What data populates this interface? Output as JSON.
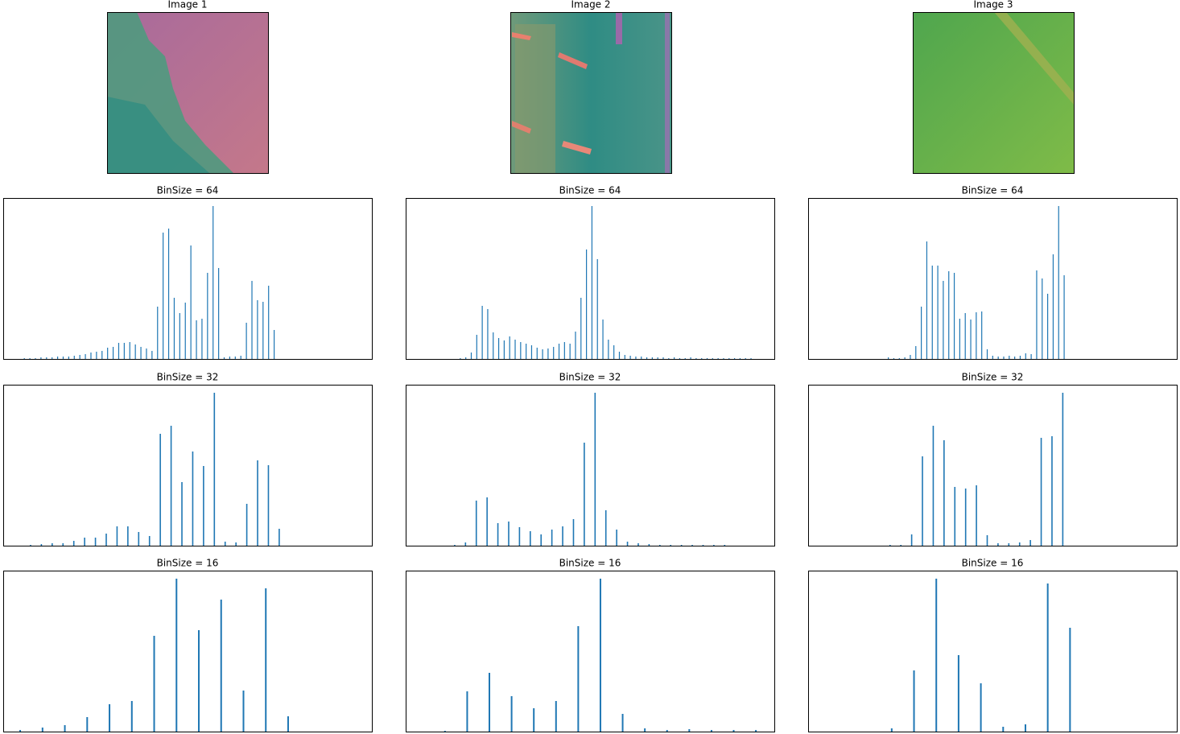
{
  "chart_data": [
    {
      "type": "image",
      "title": "Image 1"
    },
    {
      "type": "image",
      "title": "Image 2"
    },
    {
      "type": "image",
      "title": "Image 3"
    },
    {
      "type": "bar",
      "title": "BinSize = 64",
      "color": "#1f77b4",
      "ylim": [
        0,
        200
      ],
      "xlim": [
        -3.8,
        62.6
      ],
      "x": [
        0,
        1,
        2,
        3,
        4,
        5,
        6,
        7,
        8,
        9,
        10,
        11,
        12,
        13,
        14,
        15,
        16,
        17,
        18,
        19,
        20,
        21,
        22,
        23,
        24,
        25,
        26,
        27,
        28,
        29,
        30,
        31,
        32,
        33,
        34,
        35,
        36,
        37,
        38,
        39,
        40,
        41,
        42,
        43,
        44,
        45
      ],
      "values": [
        1,
        1,
        1,
        2,
        2,
        2,
        3,
        3,
        3,
        4,
        5,
        6,
        8,
        9,
        10,
        14,
        15,
        20,
        20,
        21,
        18,
        15,
        13,
        10,
        65,
        157,
        162,
        76,
        57,
        70,
        141,
        48,
        50,
        107,
        190,
        113,
        2,
        3,
        3,
        4,
        45,
        97,
        73,
        71,
        91,
        36
      ]
    },
    {
      "type": "bar",
      "title": "BinSize = 64",
      "color": "#1f77b4",
      "ylim": [
        0,
        200
      ],
      "xlim": [
        -9.96,
        57.25
      ],
      "x": [
        0,
        1,
        2,
        3,
        4,
        5,
        6,
        7,
        8,
        9,
        10,
        11,
        12,
        13,
        14,
        15,
        16,
        17,
        18,
        19,
        20,
        21,
        22,
        23,
        24,
        25,
        26,
        27,
        28,
        29,
        30,
        31,
        32,
        33,
        34,
        35,
        36,
        37,
        38,
        39,
        40,
        41,
        42,
        43,
        44,
        45,
        46,
        47,
        48,
        49,
        50,
        51,
        52,
        53
      ],
      "values": [
        1,
        2,
        8,
        30,
        66,
        62,
        33,
        26,
        23,
        28,
        24,
        21,
        19,
        17,
        14,
        12,
        13,
        15,
        19,
        21,
        19,
        34,
        76,
        136,
        190,
        124,
        49,
        24,
        17,
        9,
        5,
        4,
        3,
        3,
        2,
        2,
        2,
        2,
        1,
        2,
        1,
        1,
        2,
        1,
        1,
        1,
        1,
        1,
        1,
        1,
        1,
        1,
        1,
        1
      ]
    },
    {
      "type": "bar",
      "title": "BinSize = 64",
      "color": "#1f77b4",
      "ylim": [
        0,
        200
      ],
      "xlim": [
        -14.6,
        52.5
      ],
      "x": [
        0,
        1,
        2,
        3,
        4,
        5,
        6,
        7,
        8,
        9,
        10,
        11,
        12,
        13,
        14,
        15,
        16,
        17,
        18,
        19,
        20,
        21,
        22,
        23,
        24,
        25,
        26,
        27,
        28,
        29,
        30,
        31,
        32
      ],
      "values": [
        2,
        1,
        1,
        2,
        5,
        16,
        65,
        146,
        116,
        116,
        97,
        109,
        107,
        50,
        57,
        49,
        58,
        59,
        12,
        4,
        3,
        3,
        4,
        3,
        4,
        7,
        6,
        110,
        100,
        81,
        130,
        190,
        104
      ]
    },
    {
      "type": "bar",
      "title": "BinSize = 32",
      "color": "#1f77b4",
      "ylim": [
        0,
        200
      ],
      "xlim": [
        -2.53,
        31.57
      ],
      "x": [
        0,
        1,
        2,
        3,
        4,
        5,
        6,
        7,
        8,
        9,
        10,
        11,
        12,
        13,
        14,
        15,
        16,
        17,
        18,
        19,
        20,
        21,
        22,
        23
      ],
      "values": [
        1,
        2,
        3,
        3,
        6,
        10,
        10,
        15,
        24,
        24,
        17,
        12,
        139,
        149,
        79,
        117,
        99,
        190,
        5,
        4,
        52,
        106,
        100,
        21
      ]
    },
    {
      "type": "bar",
      "title": "BinSize = 32",
      "color": "#1f77b4",
      "ylim": [
        0,
        200
      ],
      "xlim": [
        -4.54,
        29.6
      ],
      "x": [
        0,
        1,
        2,
        3,
        4,
        5,
        6,
        7,
        8,
        9,
        10,
        11,
        12,
        13,
        14,
        15,
        16,
        17,
        18,
        19,
        20,
        21,
        22,
        23,
        24,
        25
      ],
      "values": [
        1,
        4,
        56,
        60,
        28,
        30,
        23,
        18,
        14,
        20,
        24,
        33,
        128,
        190,
        44,
        20,
        5,
        3,
        2,
        1,
        1,
        1,
        1,
        1,
        1,
        1
      ]
    },
    {
      "type": "bar",
      "title": "BinSize = 32",
      "color": "#1f77b4",
      "ylim": [
        0,
        200
      ],
      "xlim": [
        -7.59,
        26.56
      ],
      "x": [
        0,
        1,
        2,
        3,
        4,
        5,
        6,
        7,
        8,
        9,
        10,
        11,
        12,
        13,
        14,
        15,
        16
      ],
      "values": [
        1,
        1,
        14,
        111,
        149,
        131,
        73,
        71,
        75,
        13,
        3,
        3,
        4,
        7,
        134,
        136,
        190
      ]
    },
    {
      "type": "bar",
      "title": "BinSize = 16",
      "color": "#1f77b4",
      "ylim": [
        0,
        200
      ],
      "xlim": [
        -0.76,
        15.75
      ],
      "x": [
        0,
        1,
        2,
        3,
        4,
        5,
        6,
        7,
        8,
        9,
        10,
        11,
        12
      ],
      "values": [
        2,
        5,
        8,
        18,
        34,
        38,
        119,
        190,
        126,
        164,
        51,
        178,
        19
      ]
    },
    {
      "type": "bar",
      "title": "BinSize = 16",
      "color": "#1f77b4",
      "ylim": [
        0,
        200
      ],
      "xlim": [
        -1.77,
        14.83
      ],
      "x": [
        0,
        1,
        2,
        3,
        4,
        5,
        6,
        7,
        8,
        9,
        10,
        11,
        12,
        13,
        14
      ],
      "values": [
        1,
        50,
        73,
        44,
        29,
        38,
        131,
        190,
        22,
        4,
        2,
        3,
        2,
        2,
        2
      ]
    },
    {
      "type": "bar",
      "title": "BinSize = 16",
      "color": "#1f77b4",
      "ylim": [
        0,
        200
      ],
      "xlim": [
        -3.75,
        12.79
      ],
      "x": [
        0,
        1,
        2,
        3,
        4,
        5,
        6,
        7,
        8
      ],
      "values": [
        4,
        76,
        190,
        95,
        60,
        6,
        9,
        184,
        129
      ]
    }
  ]
}
